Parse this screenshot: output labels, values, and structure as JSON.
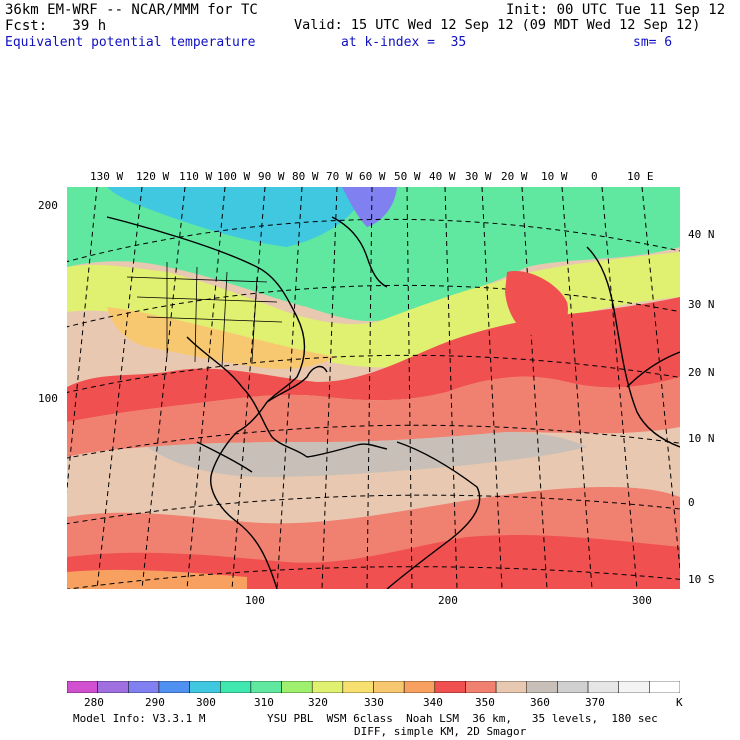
{
  "header": {
    "model_line": "36km EM-WRF -- NCAR/MMM for TC",
    "init": "Init: 00 UTC Tue 11 Sep 12",
    "fcst": "Fcst:   39 h",
    "valid": "Valid: 15 UTC Wed 12 Sep 12 (09 MDT Wed 12 Sep 12)",
    "field": "Equivalent potential temperature",
    "level": "at k-index =  35",
    "smooth": "sm= 6"
  },
  "map": {
    "lon_labels": [
      "130 W",
      "120 W",
      "110 W",
      "100 W",
      "90 W",
      "80 W",
      "70 W",
      "60 W",
      "50 W",
      "40 W",
      "30 W",
      "20 W",
      "10 W",
      "0",
      "10 E"
    ],
    "lat_labels": [
      "40 N",
      "30 N",
      "20 N",
      "10 N",
      "0",
      "10 S"
    ],
    "grid_x_labels": [
      "100",
      "200",
      "300"
    ],
    "grid_y_labels": [
      "200",
      "100"
    ],
    "colors": {
      "tropics_low": "#d0d0d0",
      "tropics_mid": "#e8c8b0",
      "warm": "#f08070",
      "hot": "#f05050",
      "mild": "#f8c870",
      "cool": "#e0f070",
      "cold": "#60e8a0",
      "colder": "#40c8e0"
    }
  },
  "colorbar": {
    "colors": [
      "#d050d0",
      "#a070e0",
      "#8080f0",
      "#5090f0",
      "#40c8e0",
      "#40e8b0",
      "#60e8a0",
      "#a0f070",
      "#e0f070",
      "#f8e070",
      "#f8c870",
      "#f8a060",
      "#f05050",
      "#f08070",
      "#e8c8b0",
      "#c8c0b8",
      "#d0d0d0",
      "#e6e6e6",
      "#f4f4f4",
      "#ffffff"
    ],
    "labels": [
      "280",
      "290",
      "300",
      "310",
      "320",
      "330",
      "340",
      "350",
      "360",
      "370"
    ],
    "unit": "K"
  },
  "footer": {
    "model_info": "Model Info: V3.3.1 M",
    "physics": "YSU PBL  WSM 6class  Noah LSM  36 km,   35 levels,  180 sec",
    "diff": "DIFF, simple KM, 2D Smagor"
  }
}
